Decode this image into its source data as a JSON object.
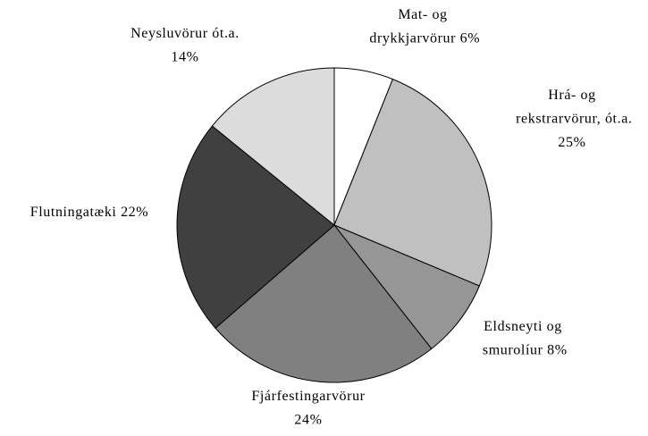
{
  "chart_data": {
    "type": "pie",
    "categories": [
      "Mat- og drykkjarvörur",
      "Hrá- og rekstrarvörur, ót.a.",
      "Eldsneyti og smurolíur",
      "Fjárfestingarvörur",
      "Flutningatæki",
      "Neysluvörur ót.a."
    ],
    "values": [
      6,
      25,
      8,
      24,
      22,
      14
    ],
    "value_labels": [
      "6%",
      "25%",
      "8%",
      "24%",
      "22%",
      "14%"
    ],
    "colors": [
      "#ffffff",
      "#c0c0c0",
      "#969696",
      "#808080",
      "#404040",
      "#dcdcdc"
    ]
  }
}
